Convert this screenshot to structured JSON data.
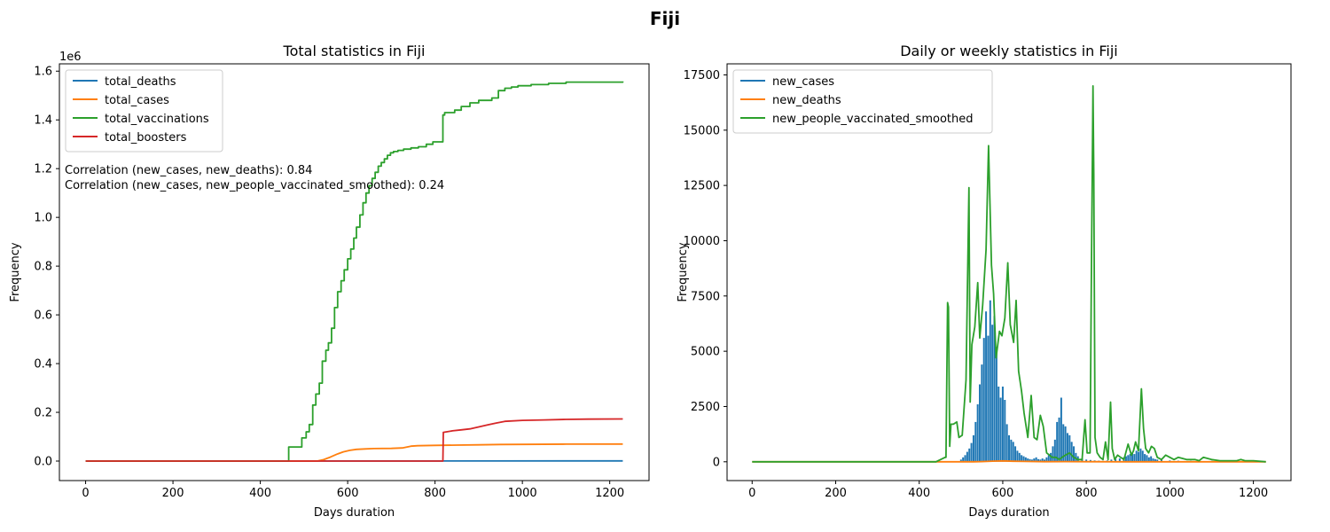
{
  "suptitle": "Fiji",
  "chart_data": [
    {
      "type": "line",
      "title": "Total statistics in Fiji",
      "xlabel": "Days duration",
      "ylabel": "Frequency",
      "y_offset_label": "1e6",
      "xlim": [
        -60,
        1290
      ],
      "ylim": [
        -80000,
        1630000
      ],
      "xticks": [
        0,
        200,
        400,
        600,
        800,
        1000,
        1200
      ],
      "yticks": [
        0,
        200000,
        400000,
        600000,
        800000,
        1000000,
        1200000,
        1400000,
        1600000
      ],
      "ytick_labels": [
        "0.0",
        "0.2",
        "0.4",
        "0.6",
        "0.8",
        "1.0",
        "1.2",
        "1.4",
        "1.6"
      ],
      "legend_position": "top-left",
      "grid": false,
      "annotations": [
        "Correlation (new_cases, new_deaths): 0.84",
        "Correlation (new_cases, new_people_vaccinated_smoothed): 0.24"
      ],
      "series": [
        {
          "name": "total_deaths",
          "color": "#1f77b4",
          "step": false,
          "x": [
            0,
            1230
          ],
          "y": [
            0,
            880
          ]
        },
        {
          "name": "total_cases",
          "color": "#ff7f0e",
          "step": false,
          "x": [
            0,
            530,
            545,
            560,
            575,
            590,
            605,
            620,
            640,
            660,
            700,
            725,
            745,
            760,
            800,
            850,
            900,
            950,
            1000,
            1100,
            1230
          ],
          "y": [
            0,
            0,
            6000,
            16000,
            28000,
            38000,
            44000,
            48000,
            50000,
            51500,
            52000,
            54000,
            61000,
            63000,
            64500,
            65500,
            66500,
            68000,
            68500,
            69500,
            70000
          ]
        },
        {
          "name": "total_vaccinations",
          "color": "#2ca02c",
          "step": true,
          "x": [
            0,
            463,
            465,
            482,
            495,
            505,
            512,
            520,
            527,
            535,
            542,
            550,
            556,
            563,
            570,
            577,
            585,
            592,
            600,
            607,
            614,
            620,
            628,
            635,
            642,
            649,
            656,
            663,
            670,
            677,
            684,
            691,
            698,
            705,
            715,
            728,
            745,
            762,
            780,
            795,
            805,
            818,
            822,
            845,
            860,
            880,
            900,
            930,
            945,
            960,
            975,
            990,
            1020,
            1060,
            1100,
            1230
          ],
          "y": [
            0,
            0,
            58000,
            58000,
            95000,
            120000,
            150000,
            230000,
            275000,
            320000,
            410000,
            455000,
            485000,
            545000,
            630000,
            695000,
            740000,
            785000,
            830000,
            870000,
            915000,
            960000,
            1010000,
            1060000,
            1100000,
            1130000,
            1160000,
            1185000,
            1210000,
            1225000,
            1240000,
            1255000,
            1265000,
            1270000,
            1275000,
            1280000,
            1285000,
            1290000,
            1300000,
            1310000,
            1310000,
            1420000,
            1430000,
            1440000,
            1455000,
            1470000,
            1480000,
            1490000,
            1520000,
            1530000,
            1535000,
            1540000,
            1545000,
            1550000,
            1555000,
            1558000
          ]
        },
        {
          "name": "total_boosters",
          "color": "#d62728",
          "step": false,
          "x": [
            0,
            818,
            819,
            840,
            860,
            880,
            900,
            920,
            940,
            960,
            1000,
            1050,
            1100,
            1150,
            1230
          ],
          "y": [
            0,
            0,
            118000,
            124000,
            128000,
            132000,
            140000,
            148000,
            156000,
            163000,
            167000,
            169000,
            171000,
            172000,
            173000
          ]
        }
      ]
    },
    {
      "type": "line",
      "title": "Daily or weekly statistics in Fiji",
      "xlabel": "Days duration",
      "ylabel": "Frequency",
      "xlim": [
        -60,
        1290
      ],
      "ylim": [
        -850,
        18000
      ],
      "xticks": [
        0,
        200,
        400,
        600,
        800,
        1000,
        1200
      ],
      "yticks": [
        0,
        2500,
        5000,
        7500,
        10000,
        12500,
        15000,
        17500
      ],
      "legend_position": "top-left",
      "grid": false,
      "series": [
        {
          "name": "new_cases",
          "color": "#1f77b4",
          "style": "spikes",
          "x": [
            500,
            505,
            510,
            515,
            520,
            525,
            530,
            535,
            540,
            545,
            550,
            555,
            560,
            565,
            570,
            575,
            580,
            585,
            590,
            595,
            600,
            605,
            610,
            615,
            620,
            625,
            630,
            635,
            640,
            645,
            650,
            655,
            660,
            665,
            670,
            675,
            680,
            685,
            690,
            695,
            700,
            705,
            710,
            715,
            720,
            725,
            730,
            735,
            740,
            745,
            750,
            755,
            760,
            765,
            770,
            775,
            780,
            790,
            800,
            810,
            820,
            830,
            840,
            850,
            860,
            870,
            880,
            890,
            895,
            900,
            905,
            910,
            915,
            920,
            925,
            930,
            935,
            940,
            945,
            950,
            955,
            960,
            965,
            970,
            980,
            1000,
            1020,
            1050,
            1080,
            1100,
            1150,
            1200
          ],
          "y": [
            100,
            200,
            300,
            450,
            600,
            850,
            1200,
            1800,
            2600,
            3500,
            4400,
            5600,
            6800,
            5700,
            7300,
            6200,
            6600,
            5200,
            3400,
            2900,
            3400,
            2800,
            1700,
            1200,
            1000,
            900,
            700,
            500,
            400,
            300,
            250,
            200,
            150,
            120,
            100,
            150,
            200,
            120,
            100,
            150,
            100,
            200,
            300,
            400,
            700,
            1000,
            1800,
            2000,
            2900,
            1700,
            1600,
            1300,
            1200,
            900,
            700,
            400,
            250,
            150,
            100,
            80,
            60,
            50,
            40,
            60,
            100,
            120,
            150,
            200,
            250,
            300,
            350,
            400,
            350,
            500,
            450,
            600,
            500,
            350,
            300,
            200,
            250,
            150,
            120,
            100,
            80,
            60,
            50,
            40,
            30,
            40,
            30,
            20
          ]
        },
        {
          "name": "new_deaths",
          "color": "#ff7f0e",
          "style": "line",
          "x": [
            0,
            530,
            550,
            575,
            600,
            625,
            650,
            700,
            750,
            800,
            900,
            1230
          ],
          "y": [
            0,
            0,
            10,
            30,
            40,
            25,
            15,
            5,
            10,
            5,
            2,
            0
          ]
        },
        {
          "name": "new_people_vaccinated_smoothed",
          "color": "#2ca02c",
          "style": "line",
          "x": [
            0,
            440,
            462,
            464,
            468,
            470,
            473,
            476,
            482,
            490,
            495,
            503,
            512,
            519,
            522,
            526,
            533,
            540,
            545,
            552,
            560,
            566,
            573,
            578,
            584,
            592,
            598,
            605,
            612,
            618,
            626,
            632,
            638,
            645,
            651,
            660,
            668,
            675,
            682,
            690,
            697,
            705,
            712,
            718,
            727,
            735,
            742,
            750,
            760,
            770,
            780,
            790,
            797,
            802,
            809,
            812,
            816,
            818,
            821,
            826,
            833,
            840,
            846,
            852,
            858,
            862,
            868,
            875,
            882,
            890,
            900,
            908,
            913,
            918,
            925,
            932,
            937,
            942,
            949,
            956,
            963,
            970,
            980,
            990,
            1000,
            1010,
            1020,
            1040,
            1060,
            1070,
            1080,
            1100,
            1120,
            1140,
            1160,
            1170,
            1180,
            1200,
            1230
          ],
          "y": [
            0,
            0,
            200,
            200,
            7200,
            7000,
            700,
            1700,
            1700,
            1800,
            1100,
            1200,
            3700,
            12400,
            2700,
            5300,
            6100,
            8100,
            5600,
            7100,
            9600,
            14300,
            8900,
            7600,
            4700,
            5900,
            5700,
            6500,
            9000,
            6200,
            5400,
            7300,
            4100,
            3200,
            2200,
            1100,
            3000,
            1100,
            1000,
            2100,
            1600,
            400,
            300,
            200,
            200,
            100,
            200,
            300,
            400,
            200,
            100,
            100,
            1900,
            400,
            400,
            8000,
            17000,
            13000,
            1100,
            400,
            200,
            100,
            900,
            100,
            2700,
            600,
            100,
            300,
            200,
            100,
            800,
            300,
            500,
            900,
            500,
            3300,
            1500,
            600,
            400,
            700,
            600,
            200,
            100,
            300,
            200,
            100,
            200,
            100,
            100,
            50,
            200,
            100,
            50,
            50,
            50,
            100,
            50,
            50,
            0
          ]
        }
      ]
    }
  ]
}
